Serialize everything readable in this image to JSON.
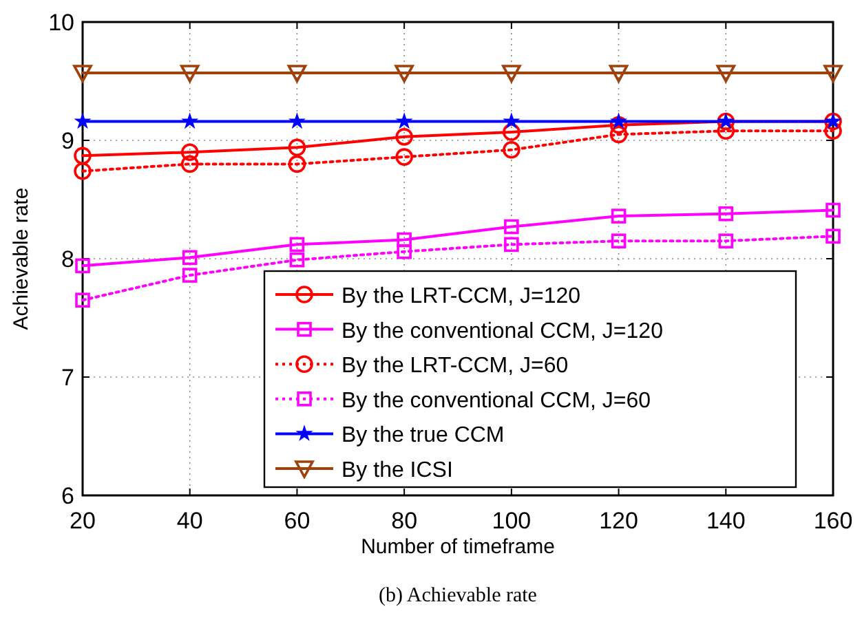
{
  "chart_data": {
    "type": "line",
    "xlabel": "Number of timeframe",
    "ylabel": "Achievable rate",
    "x": [
      20,
      40,
      60,
      80,
      100,
      120,
      140,
      160
    ],
    "xlim": [
      20,
      160
    ],
    "xticks": [
      20,
      40,
      60,
      80,
      100,
      120,
      140,
      160
    ],
    "ylim": [
      6,
      10
    ],
    "yticks": [
      6,
      7,
      8,
      9,
      10
    ],
    "grid": true,
    "legend": "bottom right",
    "annotations": [
      "(b) Achievable rate"
    ],
    "series": [
      {
        "name": "By the LRT-CCM, J=120",
        "color": "#ff0000",
        "marker": "circle",
        "line_style": "solid",
        "values": [
          8.87,
          8.9,
          8.94,
          9.03,
          9.07,
          9.13,
          9.16,
          9.16
        ]
      },
      {
        "name": "By the conventional CCM, J=120",
        "color": "#ff00ff",
        "marker": "square",
        "line_style": "solid",
        "values": [
          7.94,
          8.01,
          8.12,
          8.16,
          8.27,
          8.36,
          8.38,
          8.41
        ]
      },
      {
        "name": "By the LRT-CCM, J=60",
        "color": "#ff0000",
        "marker": "circle",
        "line_style": "dotted",
        "values": [
          8.74,
          8.8,
          8.8,
          8.86,
          8.92,
          9.05,
          9.08,
          9.08
        ]
      },
      {
        "name": "By the conventional CCM, J=60",
        "color": "#ff00ff",
        "marker": "square",
        "line_style": "dotted",
        "values": [
          7.65,
          7.86,
          7.99,
          8.06,
          8.12,
          8.15,
          8.15,
          8.19
        ]
      },
      {
        "name": "By the true CCM",
        "color": "#0000ff",
        "marker": "star",
        "line_style": "solid",
        "values": [
          9.16,
          9.16,
          9.16,
          9.16,
          9.16,
          9.16,
          9.16,
          9.16
        ]
      },
      {
        "name": "By the ICSI",
        "color": "#a0400a",
        "marker": "triangle",
        "line_style": "solid",
        "values": [
          9.57,
          9.57,
          9.57,
          9.57,
          9.57,
          9.57,
          9.57,
          9.57
        ]
      }
    ]
  }
}
